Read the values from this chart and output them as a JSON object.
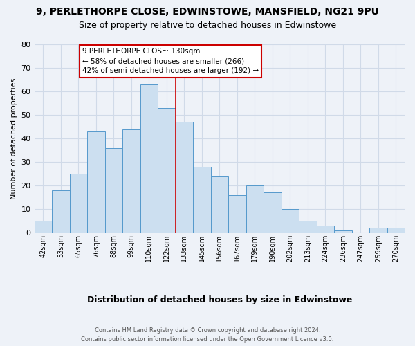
{
  "title": "9, PERLETHORPE CLOSE, EDWINSTOWE, MANSFIELD, NG21 9PU",
  "subtitle": "Size of property relative to detached houses in Edwinstowe",
  "xlabel": "Distribution of detached houses by size in Edwinstowe",
  "ylabel": "Number of detached properties",
  "categories": [
    "42sqm",
    "53sqm",
    "65sqm",
    "76sqm",
    "88sqm",
    "99sqm",
    "110sqm",
    "122sqm",
    "133sqm",
    "145sqm",
    "156sqm",
    "167sqm",
    "179sqm",
    "190sqm",
    "202sqm",
    "213sqm",
    "224sqm",
    "236sqm",
    "247sqm",
    "259sqm",
    "270sqm"
  ],
  "values": [
    5,
    18,
    25,
    43,
    36,
    44,
    63,
    53,
    47,
    28,
    24,
    16,
    20,
    17,
    10,
    5,
    3,
    1,
    0,
    2,
    2
  ],
  "bar_color": "#ccdff0",
  "bar_edge_color": "#5599cc",
  "highlight_line_color": "#cc0000",
  "highlight_index": 7,
  "ylim": [
    0,
    80
  ],
  "yticks": [
    0,
    10,
    20,
    30,
    40,
    50,
    60,
    70,
    80
  ],
  "annotation_title": "9 PERLETHORPE CLOSE: 130sqm",
  "annotation_line1": "← 58% of detached houses are smaller (266)",
  "annotation_line2": "42% of semi-detached houses are larger (192) →",
  "annotation_box_color": "#ffffff",
  "annotation_box_edge_color": "#cc0000",
  "grid_color": "#d0dae8",
  "footer_line1": "Contains HM Land Registry data © Crown copyright and database right 2024.",
  "footer_line2": "Contains public sector information licensed under the Open Government Licence v3.0.",
  "background_color": "#eef2f8",
  "title_fontsize": 10,
  "subtitle_fontsize": 9
}
